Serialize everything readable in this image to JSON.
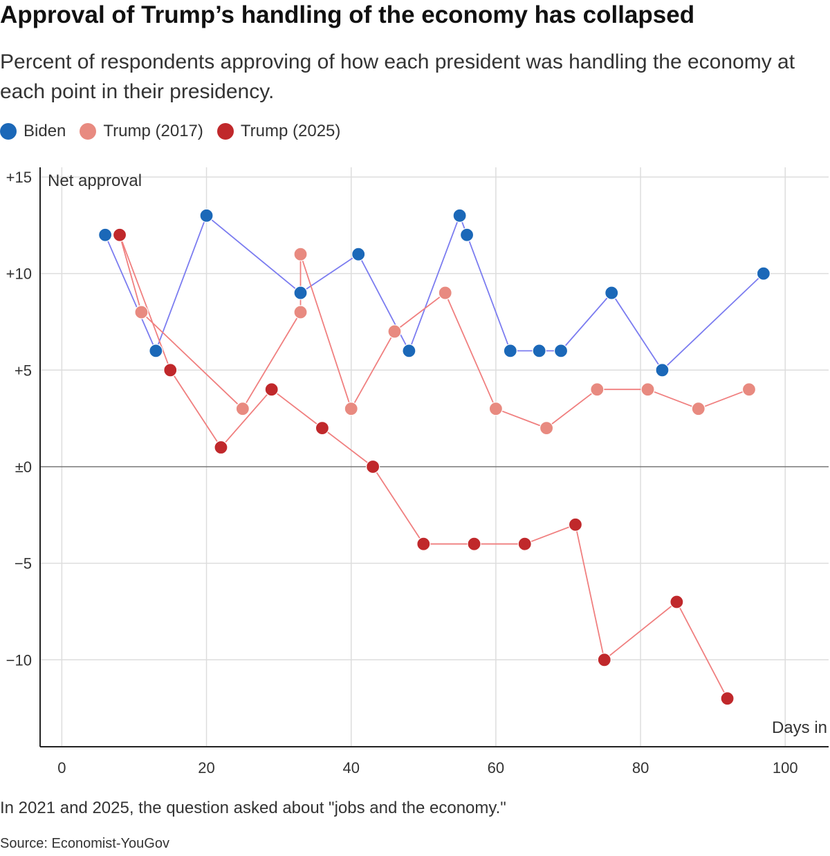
{
  "title": "Approval of Trump’s handling of the economy has collapsed",
  "subtitle": "Percent of respondents approving of how each president was handling the economy at each point in their presidency.",
  "legend": [
    {
      "label": "Biden",
      "color": "#1b68b8"
    },
    {
      "label": "Trump (2017)",
      "color": "#e88a80"
    },
    {
      "label": "Trump (2025)",
      "color": "#c0282b"
    }
  ],
  "note": "In 2021 and 2025, the question asked about \"jobs and the economy.\"",
  "source": "Source: Economist-YouGov",
  "chart_data": {
    "type": "scatter",
    "ylabel": "Net approval",
    "xlabel": "Days in",
    "xlim": [
      -3,
      106
    ],
    "ylim": [
      -14.5,
      15.5
    ],
    "x_ticks": [
      0,
      20,
      40,
      60,
      80,
      100
    ],
    "x_tick_labels": [
      "0",
      "20",
      "40",
      "60",
      "80",
      "100"
    ],
    "y_ticks": [
      15,
      10,
      5,
      0,
      -5,
      -10
    ],
    "y_tick_labels": [
      "+15",
      "+10",
      "+5",
      "±0",
      "−5",
      "−10"
    ],
    "grid": true,
    "series": [
      {
        "name": "Biden",
        "color": "#1b68b8",
        "line_color": "#7b7cf0",
        "x": [
          6,
          13,
          20,
          33,
          41,
          48,
          55,
          56,
          62,
          66,
          69,
          76,
          83,
          97
        ],
        "y": [
          12,
          6,
          13,
          9,
          11,
          6,
          13,
          12,
          6,
          6,
          6,
          9,
          5,
          10
        ]
      },
      {
        "name": "Trump (2017)",
        "color": "#e88a80",
        "line_color": "#f07f7f",
        "x": [
          8,
          11,
          25,
          33,
          33,
          40,
          46,
          53,
          60,
          67,
          74,
          81,
          88,
          95
        ],
        "y": [
          12,
          8,
          3,
          8,
          11,
          3,
          7,
          9,
          3,
          2,
          4,
          4,
          3,
          4
        ]
      },
      {
        "name": "Trump (2025)",
        "color": "#c0282b",
        "line_color": "#f07f7f",
        "x": [
          8,
          15,
          22,
          29,
          36,
          43,
          50,
          57,
          64,
          71,
          75,
          85,
          92
        ],
        "y": [
          12,
          5,
          1,
          4,
          2,
          0,
          -4,
          -4,
          -4,
          -3,
          -10,
          -7,
          -12
        ]
      }
    ]
  }
}
